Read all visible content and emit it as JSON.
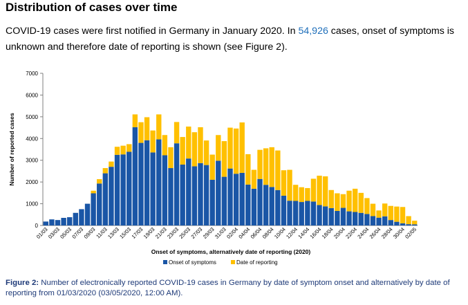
{
  "heading": "Distribution of cases over time",
  "intro": {
    "before": "COVID-19 cases were first notified in Germany in January 2020. In ",
    "highlight": "54,926",
    "after": " cases, onset of symptoms is unknown and therefore date of reporting is shown (see Figure 2).",
    "highlight_color": "#1f6fba"
  },
  "caption": {
    "label": "Figure 2:",
    "text": " Number of electronically reported COVID-19 cases in Germany by date of symptom onset and alternatively by date of reporting from 01/03/2020 (03/05/2020, 12:00 AM)."
  },
  "chart_data": {
    "type": "bar",
    "stacked": true,
    "ylabel": "Number of reported cases",
    "xlabel": "Onset of symptoms, alternatively date of reporting (2020)",
    "ylim": [
      0,
      7000
    ],
    "yticks": [
      0,
      1000,
      2000,
      3000,
      4000,
      5000,
      6000,
      7000
    ],
    "grid": false,
    "legend_position": "bottom",
    "x_tick_labels": [
      "01/03",
      "03/03",
      "05/03",
      "07/03",
      "09/03",
      "11/03",
      "13/03",
      "15/03",
      "17/03",
      "19/03",
      "21/03",
      "23/03",
      "25/03",
      "27/03",
      "29/03",
      "31/03",
      "02/04",
      "04/04",
      "06/04",
      "08/04",
      "10/04",
      "12/04",
      "14/04",
      "16/04",
      "18/04",
      "20/04",
      "22/04",
      "24/04",
      "26/04",
      "28/04",
      "30/04",
      "02/05"
    ],
    "categories": [
      "01/03",
      "02/03",
      "03/03",
      "04/03",
      "05/03",
      "06/03",
      "07/03",
      "08/03",
      "09/03",
      "10/03",
      "11/03",
      "12/03",
      "13/03",
      "14/03",
      "15/03",
      "16/03",
      "17/03",
      "18/03",
      "19/03",
      "20/03",
      "21/03",
      "22/03",
      "23/03",
      "24/03",
      "25/03",
      "26/03",
      "27/03",
      "28/03",
      "29/03",
      "30/03",
      "31/03",
      "01/04",
      "02/04",
      "03/04",
      "04/04",
      "05/04",
      "06/04",
      "07/04",
      "08/04",
      "09/04",
      "10/04",
      "11/04",
      "12/04",
      "13/04",
      "14/04",
      "15/04",
      "16/04",
      "17/04",
      "18/04",
      "19/04",
      "20/04",
      "21/04",
      "22/04",
      "23/04",
      "24/04",
      "25/04",
      "26/04",
      "27/04",
      "28/04",
      "29/04",
      "30/04",
      "01/05",
      "02/05"
    ],
    "series": [
      {
        "name": "Onset of symptoms",
        "color": "#1a56a6",
        "values": [
          180,
          280,
          250,
          350,
          380,
          580,
          750,
          1000,
          1480,
          1930,
          2400,
          2700,
          3250,
          3270,
          3390,
          4520,
          3800,
          3920,
          3360,
          3960,
          3230,
          2640,
          3780,
          2800,
          3080,
          2720,
          2870,
          2780,
          2100,
          2980,
          2240,
          2620,
          2380,
          2420,
          1880,
          1690,
          2140,
          1870,
          1770,
          1630,
          1370,
          1140,
          1130,
          1080,
          1130,
          1100,
          940,
          880,
          800,
          670,
          810,
          650,
          620,
          580,
          530,
          430,
          360,
          420,
          250,
          170,
          100,
          60,
          50
        ]
      },
      {
        "name": "Date of reporting",
        "color": "#ffc000",
        "values": [
          0,
          0,
          0,
          0,
          0,
          0,
          0,
          0,
          120,
          200,
          240,
          240,
          370,
          400,
          350,
          590,
          950,
          1060,
          1010,
          1150,
          930,
          960,
          980,
          1270,
          1470,
          1570,
          1650,
          1130,
          1160,
          1180,
          1640,
          1880,
          2080,
          2320,
          1400,
          870,
          1340,
          1680,
          1830,
          1820,
          1170,
          1420,
          740,
          680,
          590,
          1050,
          1350,
          1380,
          830,
          810,
          630,
          950,
          1070,
          920,
          730,
          570,
          330,
          590,
          650,
          700,
          750,
          370,
          170
        ]
      }
    ]
  }
}
